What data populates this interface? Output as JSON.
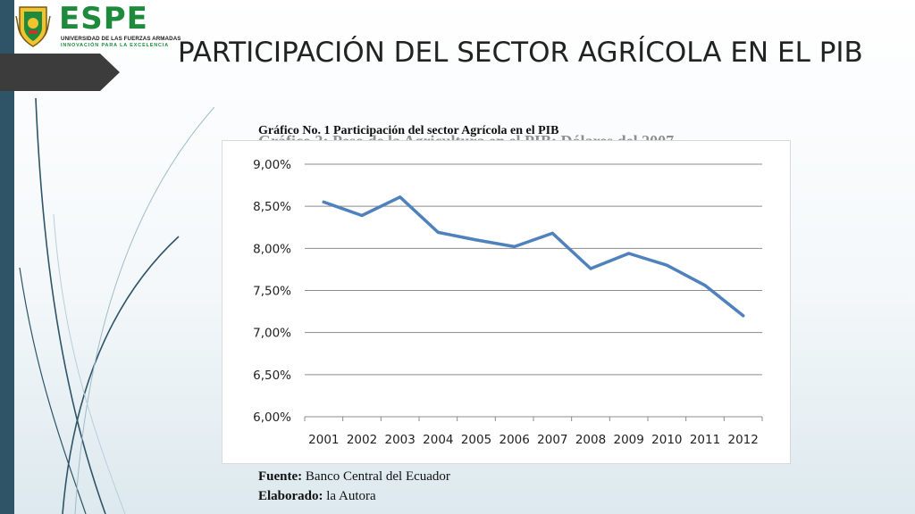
{
  "logo": {
    "name": "ESPE",
    "subtitle_1": "UNIVERSIDAD DE LAS FUERZAS ARMADAS",
    "subtitle_2": "INNOVACIÓN PARA LA EXCELENCIA",
    "brand_color": "#1d8a3c"
  },
  "slide": {
    "title": "PARTICIPACIÓN DEL SECTOR AGRÍCOLA EN EL PIB",
    "caption": "Gráfico No. 1 Participación del sector Agrícola en el PIB",
    "ghost_caption": "Gráfico 3: Peso de la Agricultura en el PIB: Dólares del 2007",
    "source_label": "Fuente:",
    "source_value": "Banco Central del Ecuador",
    "author_label": "Elaborado:",
    "author_value": "la Autora"
  },
  "chart_data": {
    "type": "line",
    "title": "",
    "xlabel": "",
    "ylabel": "",
    "categories": [
      "2001",
      "2002",
      "2003",
      "2004",
      "2005",
      "2006",
      "2007",
      "2008",
      "2009",
      "2010",
      "2011",
      "2012"
    ],
    "series": [
      {
        "values": [
          8.55,
          8.39,
          8.61,
          8.19,
          8.1,
          8.02,
          8.18,
          7.76,
          7.94,
          7.8,
          7.56,
          7.2
        ],
        "color": "#4f81bd"
      }
    ],
    "ylim": [
      6.0,
      9.0
    ],
    "yticks": [
      9.0,
      8.5,
      8.0,
      7.5,
      7.0,
      6.5,
      6.0
    ],
    "ytick_labels": [
      "9,00%",
      "8,50%",
      "8,00%",
      "7,50%",
      "7,00%",
      "6,50%",
      "6,00%"
    ],
    "grid": true,
    "legend": "none"
  }
}
